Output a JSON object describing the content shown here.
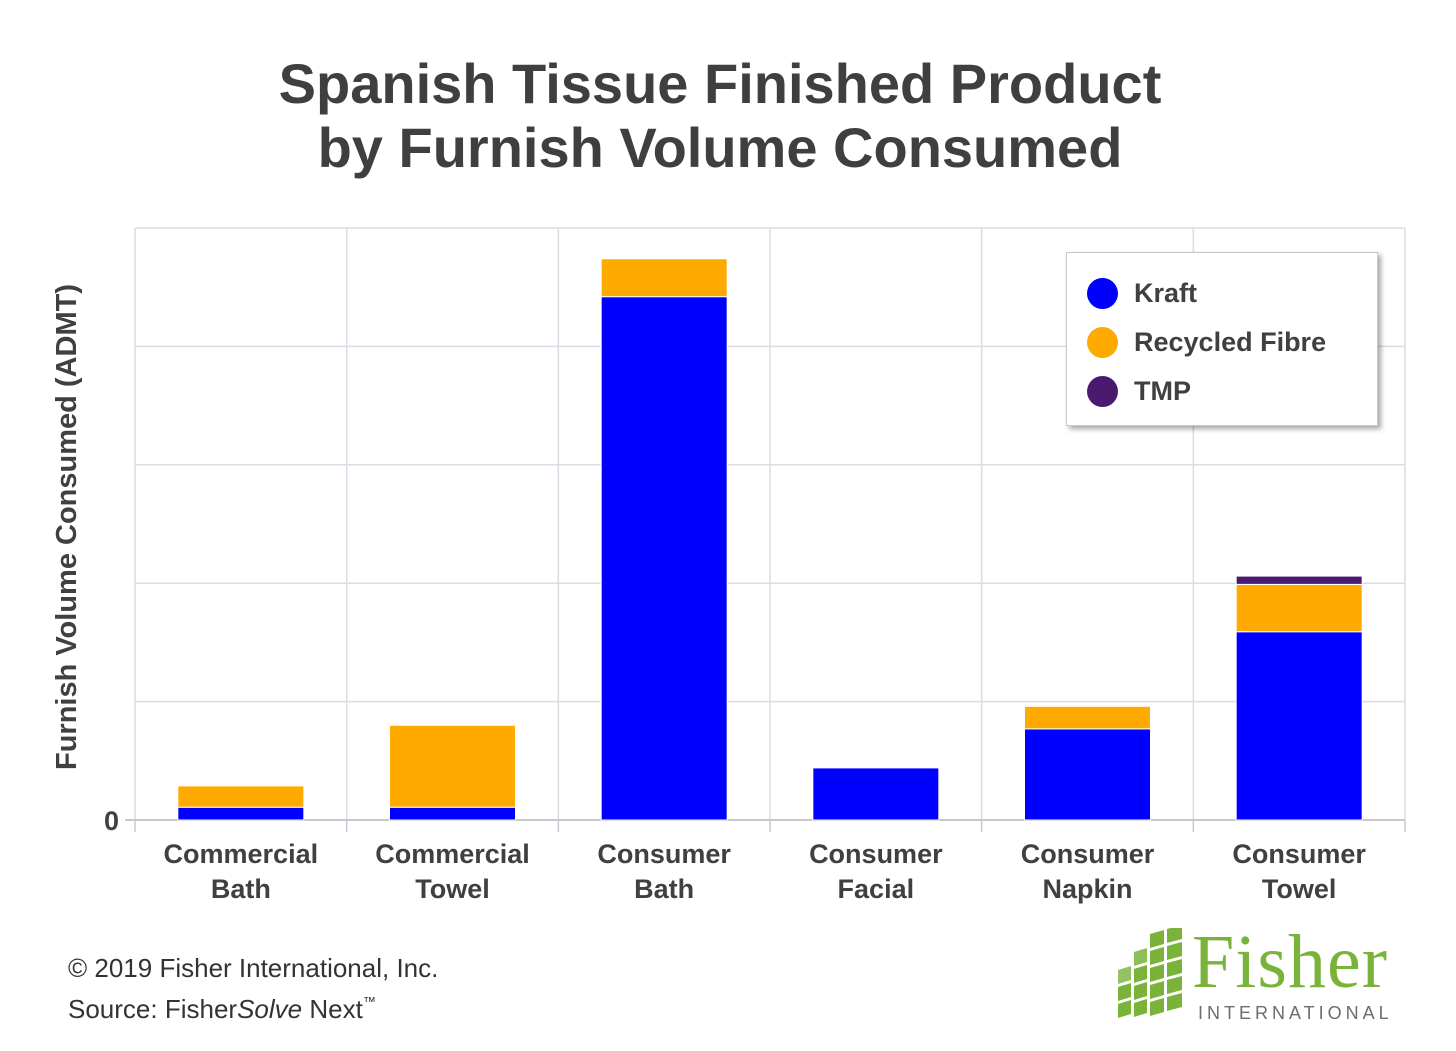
{
  "header": {
    "title_line1": "Spanish Tissue Finished Product",
    "title_line2": "by Furnish Volume Consumed"
  },
  "chart_data": {
    "type": "bar",
    "stacked": true,
    "title": "Spanish Tissue Finished Product by Furnish Volume Consumed",
    "xlabel": "",
    "ylabel": "Furnish Volume Consumed (ADMT)",
    "categories": [
      [
        "Commercial",
        "Bath"
      ],
      [
        "Commercial",
        "Towel"
      ],
      [
        "Consumer",
        "Bath"
      ],
      [
        "Consumer",
        "Facial"
      ],
      [
        "Consumer",
        "Napkin"
      ],
      [
        "Consumer",
        "Towel"
      ]
    ],
    "series": [
      {
        "name": "Kraft",
        "color": "#0000ff",
        "values": [
          0.54,
          0.54,
          22.1,
          2.2,
          3.85,
          7.95
        ]
      },
      {
        "name": "Recycled Fibre",
        "color": "#ffaa00",
        "values": [
          0.9,
          3.46,
          1.6,
          0,
          0.95,
          2.0
        ]
      },
      {
        "name": "TMP",
        "color": "#4b1a6e",
        "values": [
          0,
          0,
          0,
          0,
          0,
          0.35
        ]
      }
    ],
    "ylim": [
      0,
      25
    ],
    "yticks": [
      0,
      5,
      10,
      15,
      20,
      25
    ],
    "ytick_labels": [
      "0",
      "",
      "",
      "",
      "",
      ""
    ],
    "grid": true,
    "legend": "top-right"
  },
  "legend": {
    "items": [
      {
        "label": "Kraft",
        "color": "#0000ff"
      },
      {
        "label": "Recycled Fibre",
        "color": "#ffaa00"
      },
      {
        "label": "TMP",
        "color": "#4b1a6e"
      }
    ]
  },
  "footer": {
    "copyright": "© 2019 Fisher International, Inc.",
    "source_prefix": "Source: Fisher",
    "source_italic": "Solve",
    "source_suffix": " Next",
    "source_tm": "™"
  },
  "logo": {
    "word": "Fisher",
    "sub": "INTERNATIONAL",
    "color": "#7ab339"
  }
}
